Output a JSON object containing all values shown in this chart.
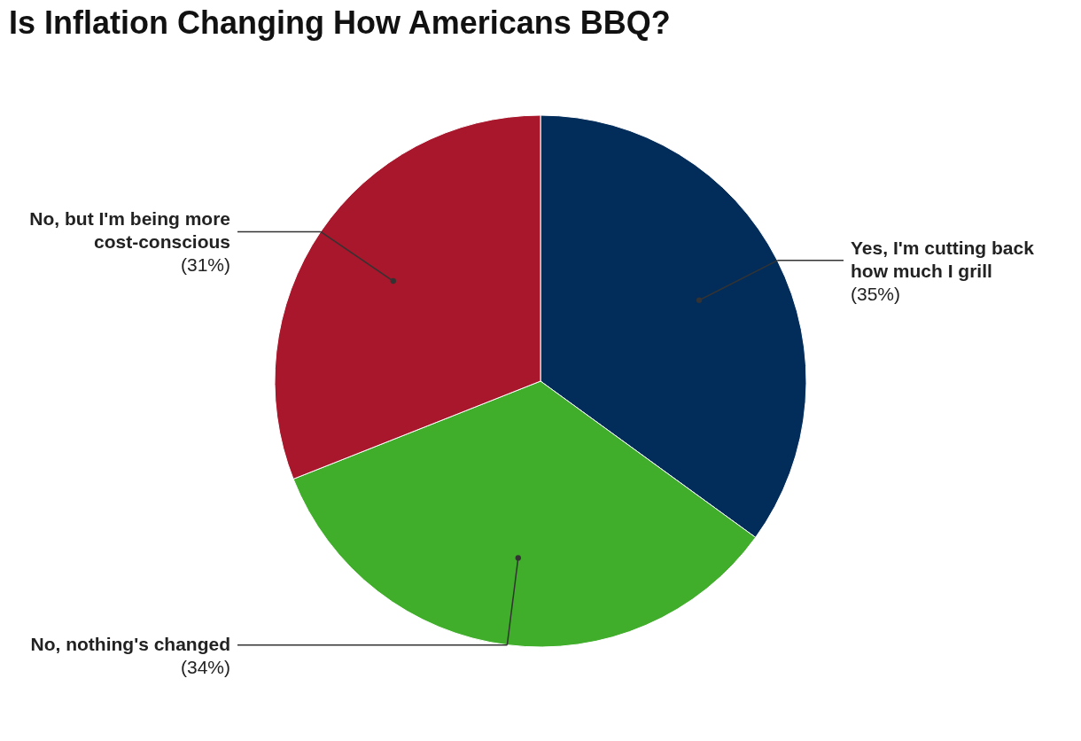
{
  "chart_data": {
    "type": "pie",
    "title": "Is Inflation Changing How Americans BBQ?",
    "categories": [
      "Yes, I'm cutting back how much I grill",
      "No, nothing's changed",
      "No, but I'm being more cost-conscious"
    ],
    "values": [
      35,
      34,
      31
    ],
    "colors": [
      "#022d5b",
      "#40ae2b",
      "#a8172b"
    ],
    "value_labels": [
      "(35%)",
      "(34%)",
      "(31%)"
    ],
    "legend": false
  }
}
